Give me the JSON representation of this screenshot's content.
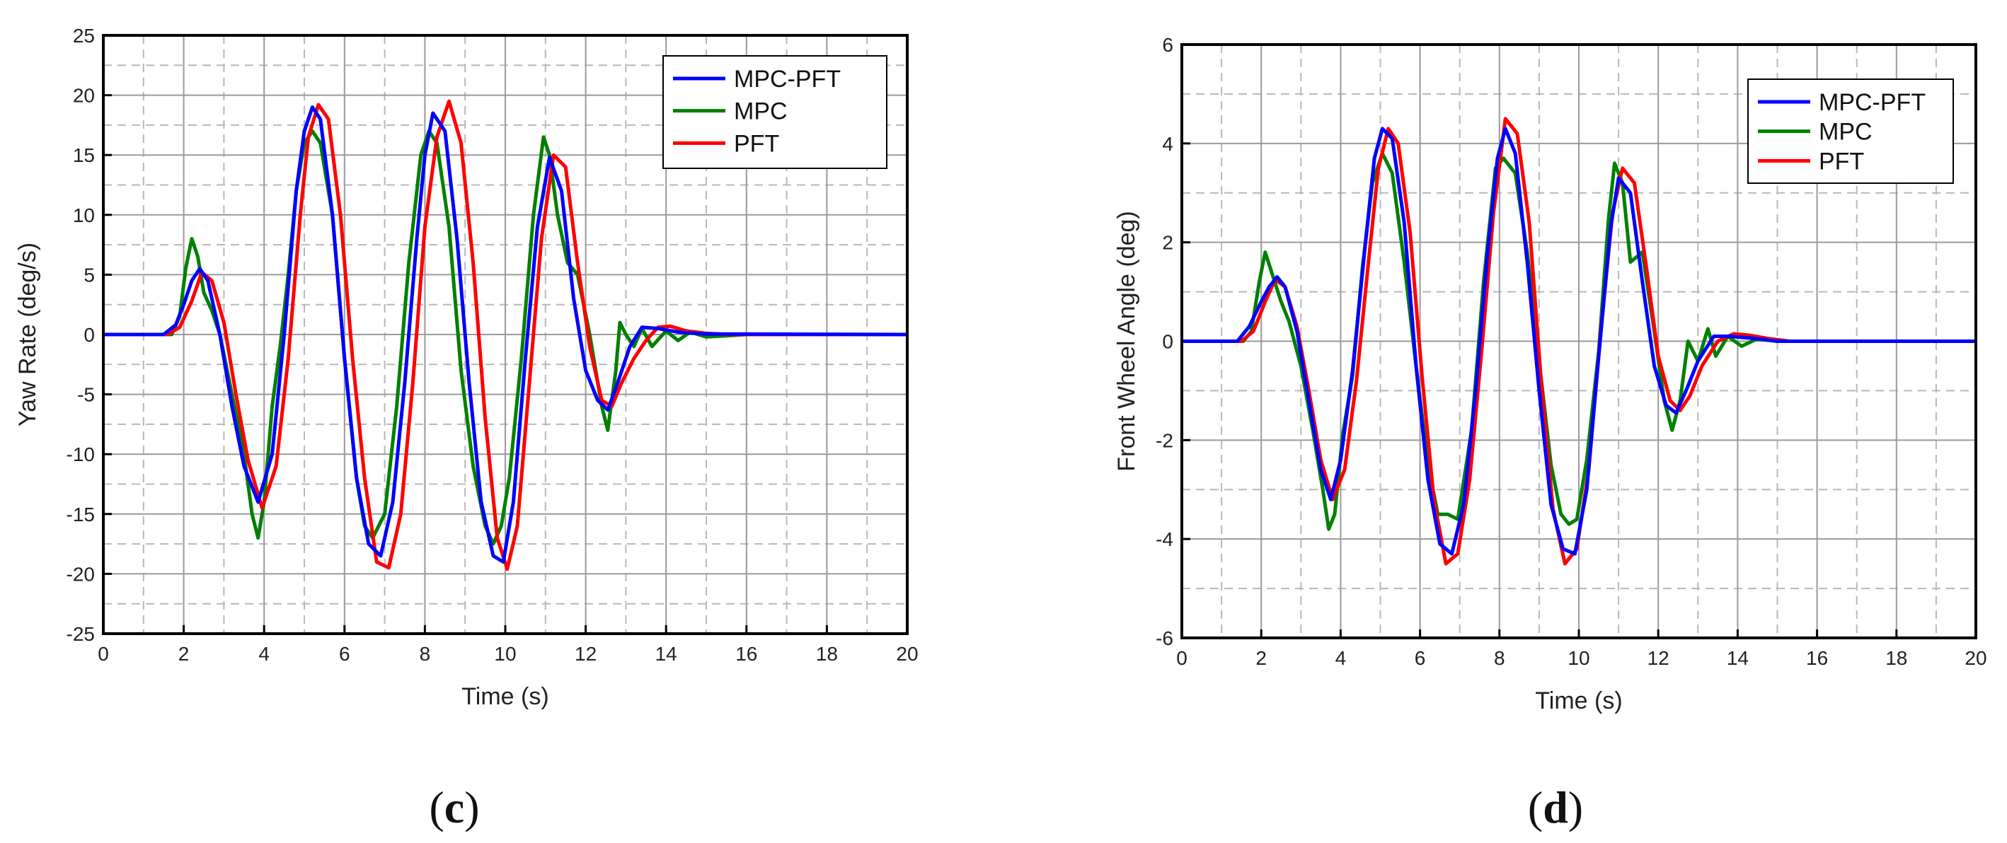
{
  "chart_data": [
    {
      "type": "line",
      "caption_open": "(",
      "caption_letter": "c",
      "caption_close": ")",
      "title": "",
      "xlabel": "Time (s)",
      "ylabel": "Yaw Rate (deg/s)",
      "xlim": [
        0,
        20
      ],
      "ylim": [
        -25,
        25
      ],
      "xticks": [
        0,
        2,
        4,
        6,
        8,
        10,
        12,
        14,
        16,
        18,
        20
      ],
      "yticks": [
        -25,
        -20,
        -15,
        -10,
        -5,
        0,
        5,
        10,
        15,
        20,
        25
      ],
      "grid": true,
      "legend_position": "top-right",
      "series": [
        {
          "name": "MPC-PFT",
          "color": "#0000ff",
          "x": [
            0,
            1.5,
            1.8,
            2.0,
            2.2,
            2.4,
            2.6,
            2.9,
            3.2,
            3.5,
            3.85,
            4.2,
            4.5,
            4.8,
            5.0,
            5.2,
            5.4,
            5.7,
            6.0,
            6.3,
            6.6,
            6.9,
            7.2,
            7.5,
            7.8,
            8.0,
            8.2,
            8.5,
            8.8,
            9.1,
            9.4,
            9.7,
            9.95,
            10.2,
            10.5,
            10.8,
            11.1,
            11.4,
            11.7,
            12.0,
            12.3,
            12.55,
            12.8,
            13.1,
            13.4,
            13.8,
            14.3,
            15,
            20
          ],
          "values": [
            0,
            0,
            0.8,
            2.5,
            4.5,
            5.5,
            4.5,
            0,
            -6,
            -11,
            -14,
            -10,
            0,
            12,
            17,
            19,
            18,
            10,
            -2,
            -12,
            -17.5,
            -18.5,
            -14,
            -4,
            8,
            15,
            18.5,
            17,
            8,
            -4,
            -14,
            -18.5,
            -19,
            -14,
            -2,
            9,
            14.8,
            12,
            3,
            -3,
            -5.5,
            -6.3,
            -4,
            -1,
            0.6,
            0.5,
            0.2,
            0.05,
            0
          ]
        },
        {
          "name": "MPC",
          "color": "#008000",
          "x": [
            0,
            1.7,
            1.9,
            2.05,
            2.2,
            2.35,
            2.5,
            2.7,
            2.9,
            3.2,
            3.5,
            3.7,
            3.85,
            4.0,
            4.2,
            4.4,
            4.6,
            4.8,
            5.0,
            5.2,
            5.4,
            5.7,
            6.0,
            6.3,
            6.5,
            6.7,
            7.0,
            7.3,
            7.6,
            7.9,
            8.1,
            8.3,
            8.6,
            8.9,
            9.2,
            9.5,
            9.7,
            9.9,
            10.1,
            10.4,
            10.7,
            10.95,
            11.1,
            11.3,
            11.55,
            11.8,
            12.1,
            12.4,
            12.55,
            12.75,
            12.85,
            13.0,
            13.2,
            13.4,
            13.65,
            14.0,
            14.3,
            14.6,
            15.0,
            16,
            20
          ],
          "values": [
            0,
            0,
            1.5,
            5.5,
            8,
            6.5,
            3.5,
            2,
            0,
            -5,
            -10,
            -15,
            -17,
            -14,
            -6,
            -1,
            5,
            12,
            16,
            17,
            16,
            10,
            -2,
            -12,
            -16,
            -17,
            -15,
            -6,
            6,
            15,
            17,
            16,
            9,
            -3,
            -11,
            -16,
            -17.5,
            -16,
            -12,
            -2,
            10,
            16.5,
            15,
            10,
            6,
            5,
            0,
            -6,
            -8,
            -3,
            1,
            0,
            -1,
            0.5,
            -1,
            0.3,
            -0.5,
            0.2,
            -0.2,
            0,
            0
          ]
        },
        {
          "name": "PFT",
          "color": "#ff0000",
          "x": [
            0,
            1.6,
            1.9,
            2.2,
            2.45,
            2.7,
            3.0,
            3.3,
            3.6,
            3.95,
            4.3,
            4.6,
            4.9,
            5.1,
            5.35,
            5.6,
            5.9,
            6.2,
            6.5,
            6.8,
            7.1,
            7.4,
            7.7,
            8.0,
            8.3,
            8.6,
            8.9,
            9.2,
            9.5,
            9.8,
            10.05,
            10.3,
            10.6,
            10.9,
            11.2,
            11.5,
            11.8,
            12.1,
            12.4,
            12.65,
            12.9,
            13.2,
            13.5,
            13.8,
            14.1,
            14.5,
            15,
            15.5,
            20
          ],
          "values": [
            0,
            0,
            0.6,
            2.8,
            5.2,
            4.5,
            1,
            -5,
            -10.5,
            -14.5,
            -11,
            -2,
            10,
            16.5,
            19.2,
            18,
            10,
            -2,
            -12,
            -19,
            -19.5,
            -15,
            -4,
            9,
            16.5,
            19.5,
            16,
            6,
            -7,
            -17,
            -19.6,
            -16,
            -4,
            8,
            15,
            14,
            6,
            -1,
            -5.5,
            -6,
            -4,
            -2,
            -0.5,
            0.6,
            0.7,
            0.3,
            0.1,
            0,
            0
          ]
        }
      ]
    },
    {
      "type": "line",
      "caption_open": "(",
      "caption_letter": "d",
      "caption_close": ")",
      "title": "",
      "xlabel": "Time (s)",
      "ylabel": "Front Wheel Angle (deg)",
      "xlim": [
        0,
        20
      ],
      "ylim": [
        -6,
        6
      ],
      "xticks": [
        0,
        2,
        4,
        6,
        8,
        10,
        12,
        14,
        16,
        18,
        20
      ],
      "yticks": [
        -6,
        -4,
        -2,
        0,
        2,
        4,
        6
      ],
      "grid": true,
      "legend_position": "top-right",
      "series": [
        {
          "name": "MPC-PFT",
          "color": "#0000ff",
          "x": [
            0,
            1.4,
            1.7,
            2.0,
            2.2,
            2.4,
            2.6,
            2.9,
            3.2,
            3.5,
            3.75,
            4.0,
            4.3,
            4.6,
            4.85,
            5.05,
            5.3,
            5.6,
            5.9,
            6.2,
            6.5,
            6.8,
            7.1,
            7.4,
            7.7,
            7.95,
            8.15,
            8.4,
            8.7,
            9.0,
            9.3,
            9.6,
            9.9,
            10.2,
            10.5,
            10.8,
            11.0,
            11.3,
            11.6,
            11.9,
            12.2,
            12.45,
            12.7,
            13.0,
            13.4,
            13.8,
            14.5,
            15,
            20
          ],
          "values": [
            0,
            0,
            0.3,
            0.8,
            1.1,
            1.3,
            1.1,
            0.2,
            -1.2,
            -2.6,
            -3.2,
            -2.4,
            -0.6,
            1.8,
            3.7,
            4.3,
            4.1,
            2.4,
            -0.5,
            -2.8,
            -4.1,
            -4.3,
            -3.3,
            -1.0,
            1.8,
            3.7,
            4.3,
            3.8,
            1.6,
            -1.0,
            -3.3,
            -4.2,
            -4.3,
            -3.0,
            -0.3,
            2.3,
            3.3,
            3.0,
            1.2,
            -0.5,
            -1.3,
            -1.45,
            -1.0,
            -0.4,
            0.1,
            0.1,
            0.05,
            0,
            0
          ]
        },
        {
          "name": "MPC",
          "color": "#008000",
          "x": [
            0,
            1.55,
            1.75,
            1.95,
            2.1,
            2.3,
            2.5,
            2.7,
            3.0,
            3.3,
            3.55,
            3.7,
            3.85,
            4.05,
            4.3,
            4.55,
            4.8,
            5.05,
            5.3,
            5.6,
            5.9,
            6.2,
            6.45,
            6.7,
            6.95,
            7.3,
            7.6,
            7.9,
            8.1,
            8.4,
            8.7,
            9.0,
            9.3,
            9.55,
            9.75,
            9.95,
            10.2,
            10.5,
            10.75,
            10.9,
            11.1,
            11.3,
            11.6,
            11.9,
            12.15,
            12.35,
            12.55,
            12.75,
            13.0,
            13.25,
            13.45,
            13.75,
            14.1,
            14.5,
            15,
            16,
            20
          ],
          "values": [
            0,
            0,
            0.2,
            1.2,
            1.8,
            1.3,
            0.8,
            0.4,
            -0.5,
            -1.8,
            -3.0,
            -3.8,
            -3.5,
            -1.9,
            -0.7,
            1.5,
            3.2,
            3.8,
            3.4,
            1.6,
            -0.5,
            -2.5,
            -3.5,
            -3.5,
            -3.6,
            -1.8,
            1.2,
            3.5,
            3.7,
            3.4,
            1.8,
            -0.4,
            -2.5,
            -3.5,
            -3.7,
            -3.6,
            -2.4,
            -0.2,
            2.5,
            3.6,
            3.2,
            1.6,
            1.8,
            0.2,
            -1.2,
            -1.8,
            -1.2,
            0.0,
            -0.4,
            0.25,
            -0.3,
            0.1,
            -0.1,
            0.05,
            0,
            0,
            0
          ]
        },
        {
          "name": "PFT",
          "color": "#ff0000",
          "x": [
            0,
            1.5,
            1.8,
            2.1,
            2.35,
            2.6,
            2.9,
            3.2,
            3.5,
            3.8,
            4.1,
            4.4,
            4.7,
            4.95,
            5.2,
            5.45,
            5.75,
            6.05,
            6.35,
            6.65,
            6.95,
            7.25,
            7.55,
            7.85,
            8.15,
            8.45,
            8.75,
            9.05,
            9.35,
            9.65,
            9.95,
            10.25,
            10.55,
            10.85,
            11.1,
            11.4,
            11.7,
            12.0,
            12.3,
            12.55,
            12.8,
            13.1,
            13.5,
            13.9,
            14.3,
            14.8,
            15.3,
            20
          ],
          "values": [
            0,
            0,
            0.2,
            0.8,
            1.25,
            1.1,
            0.3,
            -1.0,
            -2.4,
            -3.2,
            -2.6,
            -0.8,
            1.6,
            3.5,
            4.3,
            4.0,
            2.2,
            -0.7,
            -3.2,
            -4.5,
            -4.3,
            -2.8,
            -0.2,
            2.6,
            4.5,
            4.2,
            2.4,
            -0.8,
            -3.4,
            -4.5,
            -4.2,
            -2.6,
            0.2,
            2.6,
            3.5,
            3.2,
            1.5,
            -0.3,
            -1.2,
            -1.4,
            -1.1,
            -0.5,
            0.0,
            0.15,
            0.12,
            0.05,
            0,
            0
          ]
        }
      ]
    }
  ]
}
